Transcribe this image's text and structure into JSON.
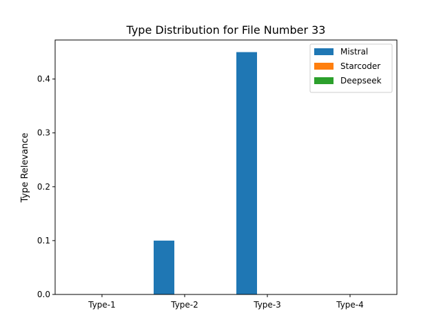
{
  "chart_data": {
    "type": "bar",
    "title": "Type Distribution for File Number 33",
    "xlabel": "",
    "ylabel": "Type Relevance",
    "categories": [
      "Type-1",
      "Type-2",
      "Type-3",
      "Type-4"
    ],
    "series": [
      {
        "name": "Mistral",
        "color": "#1f77b4",
        "values": [
          0.0,
          0.1,
          0.45,
          0.0
        ]
      },
      {
        "name": "Starcoder",
        "color": "#ff7f0e",
        "values": [
          0.0,
          0.0,
          0.0,
          0.0
        ]
      },
      {
        "name": "Deepseek",
        "color": "#2ca02c",
        "values": [
          0.0,
          0.0,
          0.0,
          0.0
        ]
      }
    ],
    "ylim": [
      0,
      0.4725
    ],
    "yticks": [
      0.0,
      0.1,
      0.2,
      0.3,
      0.4
    ],
    "ytick_labels": [
      "0.0",
      "0.1",
      "0.2",
      "0.3",
      "0.4"
    ],
    "grid": false,
    "legend_position": "top-right"
  }
}
